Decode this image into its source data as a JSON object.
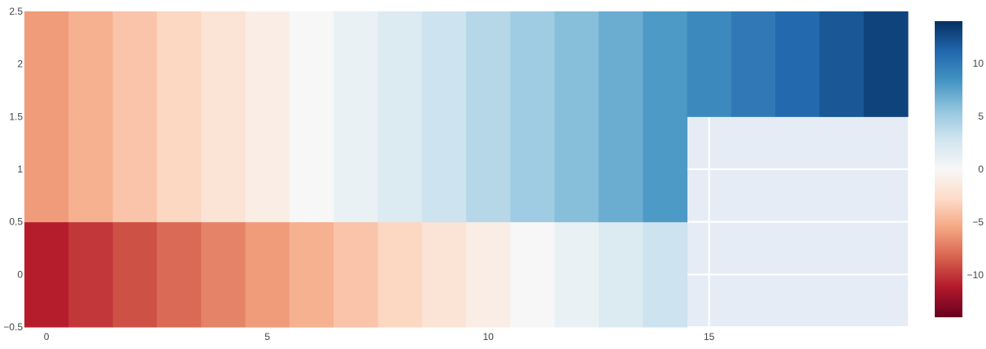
{
  "chart_data": {
    "type": "heatmap",
    "title": "",
    "xlabel": "",
    "ylabel": "",
    "x": [
      0,
      1,
      2,
      3,
      4,
      5,
      6,
      7,
      8,
      9,
      10,
      11,
      12,
      13,
      14,
      15,
      16,
      17,
      18,
      19
    ],
    "y": [
      0,
      1,
      2
    ],
    "z": [
      [
        -11,
        -10,
        -9,
        -8,
        -7,
        -6,
        -5,
        -4,
        -3,
        -2,
        -1,
        0,
        1,
        2,
        3,
        null,
        null,
        null,
        null,
        null
      ],
      [
        -6,
        -5,
        -4,
        -3,
        -2,
        -1,
        0,
        1,
        2,
        3,
        4,
        5,
        6,
        7,
        8,
        null,
        null,
        null,
        null,
        null
      ],
      [
        -6,
        -5,
        -4,
        -3,
        -2,
        -1,
        0,
        1,
        2,
        3,
        4,
        5,
        6,
        7,
        8,
        9,
        10,
        11,
        12,
        13
      ]
    ],
    "xlim": [
      -0.5,
      19.5
    ],
    "ylim": [
      -0.5,
      2.5
    ],
    "x_ticks": [
      0,
      5,
      10,
      15
    ],
    "x_tick_labels": [
      "0",
      "5",
      "10",
      "15"
    ],
    "y_ticks": [
      -0.5,
      0,
      0.5,
      1,
      1.5,
      2,
      2.5
    ],
    "y_tick_labels": [
      "−0.5",
      "0",
      "0.5",
      "1",
      "1.5",
      "2",
      "2.5"
    ],
    "colorscale": "RdBu",
    "colorscale_stops": [
      "#67001f",
      "#b2182b",
      "#d6604d",
      "#f4a582",
      "#fddbc7",
      "#f7f7f7",
      "#d1e5f0",
      "#92c5de",
      "#4393c3",
      "#2166ac",
      "#053061"
    ],
    "zmin": -14,
    "zmax": 14,
    "colorbar_ticks": [
      -10,
      -5,
      0,
      5,
      10
    ],
    "colorbar_tick_labels": [
      "−10",
      "−5",
      "0",
      "5",
      "10"
    ],
    "plot_background": "#e5ecf6",
    "grid": true
  }
}
